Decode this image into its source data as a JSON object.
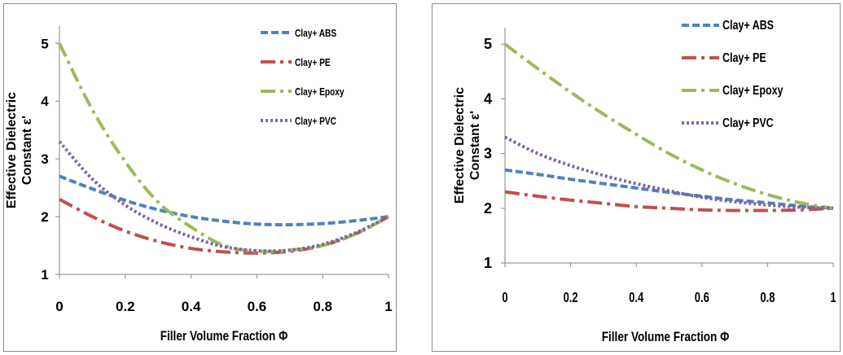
{
  "colors": {
    "abs": "#4f81bd",
    "pe": "#c0504d",
    "epoxy": "#9bbb59",
    "pvc": "#8064a2",
    "axis": "#868686",
    "text": "#000000"
  },
  "chart_data": [
    {
      "type": "line",
      "title": "",
      "xlabel": "Filler Volume Fraction Φ",
      "ylabel": "Effective Dielectric Constant ε'",
      "xlim": [
        0,
        1
      ],
      "ylim": [
        1,
        5.3
      ],
      "x_ticks": [
        "0",
        "0.2",
        "0.4",
        "0.6",
        "0.8",
        "1"
      ],
      "y_ticks": [
        "1",
        "2",
        "3",
        "4",
        "5"
      ],
      "grid": false,
      "legend_position": "top-right",
      "x": [
        0,
        0.1,
        0.2,
        0.3,
        0.4,
        0.5,
        0.6,
        0.7,
        0.8,
        0.9,
        1.0
      ],
      "series": [
        {
          "name": "Clay+ ABS",
          "color": "#4f81bd",
          "values": [
            2.7,
            2.48,
            2.28,
            2.12,
            2.0,
            1.92,
            1.87,
            1.86,
            1.88,
            1.93,
            2.0
          ]
        },
        {
          "name": "Clay+ PE",
          "color": "#c0504d",
          "values": [
            2.3,
            2.0,
            1.75,
            1.57,
            1.45,
            1.39,
            1.37,
            1.4,
            1.5,
            1.7,
            2.0
          ]
        },
        {
          "name": "Clay+ Epoxy",
          "color": "#9bbb59",
          "values": [
            5.0,
            3.85,
            2.95,
            2.25,
            1.82,
            1.5,
            1.4,
            1.42,
            1.5,
            1.7,
            2.0
          ]
        },
        {
          "name": "Clay+ PVC",
          "color": "#8064a2",
          "values": [
            3.3,
            2.65,
            2.2,
            1.88,
            1.65,
            1.48,
            1.41,
            1.42,
            1.52,
            1.72,
            2.0
          ]
        }
      ]
    },
    {
      "type": "line",
      "title": "",
      "xlabel": "Filler Volume Fraction Φ",
      "ylabel": "Effective Dielectric Constant ε'",
      "xlim": [
        0,
        1
      ],
      "ylim": [
        1,
        5.3
      ],
      "x_ticks": [
        "0",
        "0.2",
        "0.4",
        "0.6",
        "0.8",
        "1"
      ],
      "y_ticks": [
        "1",
        "2",
        "3",
        "4",
        "5"
      ],
      "grid": false,
      "legend_position": "top-right",
      "x": [
        0,
        0.1,
        0.2,
        0.3,
        0.4,
        0.5,
        0.6,
        0.7,
        0.8,
        0.9,
        1.0
      ],
      "series": [
        {
          "name": "Clay+ ABS",
          "color": "#4f81bd",
          "values": [
            2.7,
            2.62,
            2.53,
            2.45,
            2.37,
            2.29,
            2.22,
            2.15,
            2.1,
            2.04,
            2.0
          ]
        },
        {
          "name": "Clay+ PE",
          "color": "#c0504d",
          "values": [
            2.3,
            2.22,
            2.15,
            2.09,
            2.03,
            2.0,
            1.97,
            1.96,
            1.96,
            1.97,
            2.0
          ]
        },
        {
          "name": "Clay+ Epoxy",
          "color": "#9bbb59",
          "values": [
            5.0,
            4.55,
            4.12,
            3.72,
            3.35,
            3.0,
            2.7,
            2.45,
            2.25,
            2.1,
            2.0
          ]
        },
        {
          "name": "Clay+ PVC",
          "color": "#8064a2",
          "values": [
            3.3,
            3.0,
            2.78,
            2.6,
            2.45,
            2.32,
            2.2,
            2.12,
            2.06,
            2.02,
            2.0
          ]
        }
      ]
    }
  ]
}
